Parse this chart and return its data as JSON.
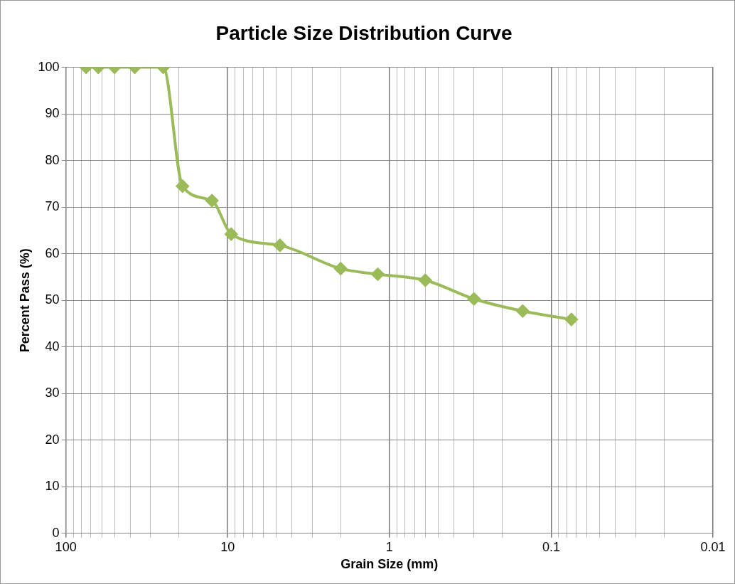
{
  "chart_data": {
    "type": "line",
    "title": "Particle Size Distribution Curve",
    "xlabel": "Grain Size (mm)",
    "ylabel": "Percent Pass (%)",
    "x": [
      75,
      63,
      50,
      37.5,
      25,
      19,
      12.5,
      9.5,
      4.75,
      2,
      1.18,
      0.6,
      0.3,
      0.15,
      0.075
    ],
    "series": [
      {
        "color": "#9bbb59",
        "values": [
          100,
          100,
          100,
          100,
          100,
          74.5,
          71.4,
          64.2,
          61.8,
          56.8,
          55.6,
          54.3,
          50.3,
          47.7,
          45.9
        ]
      }
    ],
    "log": "x",
    "xlim": [
      100,
      0.01
    ],
    "xticks": [
      100,
      {
        "value": 90,
        "label": null
      },
      {
        "value": 80,
        "label": null
      },
      {
        "value": 70,
        "label": null
      },
      {
        "value": 60,
        "label": null
      },
      {
        "value": 50,
        "label": null
      },
      {
        "value": 40,
        "label": null
      },
      {
        "value": 30,
        "label": null
      },
      {
        "value": 20,
        "label": null
      },
      10,
      {
        "value": 9,
        "label": null
      },
      {
        "value": 8,
        "label": null
      },
      {
        "value": 7,
        "label": null
      },
      {
        "value": 6,
        "label": null
      },
      {
        "value": 5,
        "label": null
      },
      {
        "value": 4,
        "label": null
      },
      {
        "value": 3,
        "label": null
      },
      {
        "value": 2,
        "label": null
      },
      1,
      {
        "value": 0.9,
        "label": null
      },
      {
        "value": 0.8,
        "label": null
      },
      {
        "value": 0.7,
        "label": null
      },
      {
        "value": 0.6,
        "label": null
      },
      {
        "value": 0.5,
        "label": null
      },
      {
        "value": 0.4,
        "label": null
      },
      {
        "value": 0.3,
        "label": null
      },
      {
        "value": 0.2,
        "label": null
      },
      0.1,
      {
        "value": 0.09,
        "label": null
      },
      {
        "value": 0.08,
        "label": null
      },
      {
        "value": 0.07,
        "label": null
      },
      {
        "value": 0.06,
        "label": null
      },
      {
        "value": 0.05,
        "label": null
      },
      {
        "value": 0.04,
        "label": null
      },
      {
        "value": 0.03,
        "label": null
      },
      {
        "value": 0.02,
        "label": null
      },
      0.01
    ],
    "ylim": [
      0,
      100
    ],
    "yticks": [
      0,
      10,
      20,
      30,
      40,
      50,
      60,
      70,
      80,
      90,
      100
    ],
    "grid": true,
    "legend": false,
    "marker": "diamond",
    "line_style": "solid"
  }
}
